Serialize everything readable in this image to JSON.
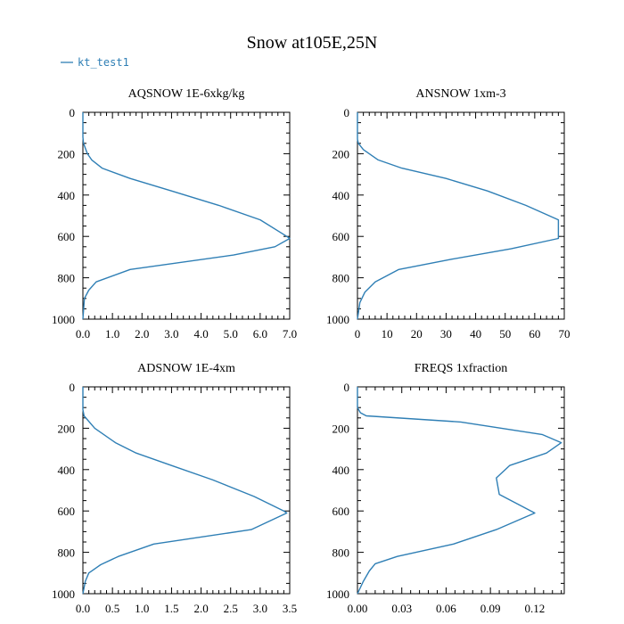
{
  "title": "Snow at105E,25N",
  "legend": {
    "label": "kt_test1",
    "color": "#2f7fb5",
    "placement": "top-left"
  },
  "chart_data": [
    {
      "type": "line",
      "title": "AQSNOW  1E-6xkg/kg",
      "xlim": [
        0,
        7
      ],
      "ylim": [
        1000,
        0
      ],
      "xticks": [
        0,
        1,
        2,
        3,
        4,
        5,
        6,
        7
      ],
      "xtick_labels": [
        "0.0",
        "1.0",
        "2.0",
        "3.0",
        "4.0",
        "5.0",
        "6.0",
        "7.0"
      ],
      "yticks": [
        0,
        200,
        400,
        600,
        800,
        1000
      ],
      "ytick_labels": [
        "0",
        "200",
        "400",
        "600",
        "800",
        "1000"
      ],
      "series": [
        {
          "x": [
            0,
            0,
            0.02,
            0.15,
            0.3,
            0.65,
            1.6,
            3.0,
            4.6,
            6.0,
            6.9,
            7.0,
            6.5,
            5.1,
            1.6,
            0.45,
            0.2,
            0.05,
            0
          ],
          "y": [
            0,
            120,
            150,
            200,
            230,
            270,
            320,
            380,
            450,
            520,
            600,
            610,
            650,
            690,
            760,
            820,
            860,
            900,
            1000
          ]
        }
      ]
    },
    {
      "type": "line",
      "title": "ANSNOW  1xm-3",
      "xlim": [
        0,
        70
      ],
      "ylim": [
        1000,
        0
      ],
      "xticks": [
        0,
        10,
        20,
        30,
        40,
        50,
        60,
        70
      ],
      "xtick_labels": [
        "0",
        "10",
        "20",
        "30",
        "40",
        "50",
        "60",
        "70"
      ],
      "yticks": [
        0,
        200,
        400,
        600,
        800,
        1000
      ],
      "ytick_labels": [
        "0",
        "200",
        "400",
        "600",
        "800",
        "1000"
      ],
      "series": [
        {
          "x": [
            0,
            0,
            0.3,
            2,
            7,
            15,
            30,
            44,
            57,
            68,
            68,
            52,
            32,
            14,
            6,
            2.5,
            0.8,
            0
          ],
          "y": [
            0,
            130,
            150,
            180,
            230,
            270,
            320,
            380,
            450,
            520,
            610,
            660,
            710,
            760,
            820,
            870,
            920,
            1000
          ]
        }
      ]
    },
    {
      "type": "line",
      "title": "ADSNOW  1E-4xm",
      "xlim": [
        0,
        3.5
      ],
      "ylim": [
        1000,
        0
      ],
      "xticks": [
        0,
        0.5,
        1,
        1.5,
        2,
        2.5,
        3,
        3.5
      ],
      "xtick_labels": [
        "0.0",
        "0.5",
        "1.0",
        "1.5",
        "2.0",
        "2.5",
        "3.0",
        "3.5"
      ],
      "yticks": [
        0,
        200,
        400,
        600,
        800,
        1000
      ],
      "ytick_labels": [
        "0",
        "200",
        "400",
        "600",
        "800",
        "1000"
      ],
      "series": [
        {
          "x": [
            0,
            0,
            0.02,
            0.2,
            0.55,
            0.9,
            1.5,
            2.2,
            2.9,
            3.4,
            3.45,
            2.85,
            1.2,
            0.6,
            0.3,
            0.1,
            0.04,
            0
          ],
          "y": [
            0,
            110,
            140,
            200,
            270,
            320,
            380,
            450,
            530,
            600,
            610,
            690,
            760,
            820,
            860,
            900,
            940,
            1000
          ]
        }
      ]
    },
    {
      "type": "line",
      "title": "FREQS  1xfraction",
      "xlim": [
        0,
        0.14
      ],
      "ylim": [
        1000,
        0
      ],
      "xticks": [
        0,
        0.03,
        0.06,
        0.09,
        0.12
      ],
      "xtick_labels": [
        "0.00",
        "0.03",
        "0.06",
        "0.09",
        "0.12"
      ],
      "yticks": [
        0,
        200,
        400,
        600,
        800,
        1000
      ],
      "ytick_labels": [
        "0",
        "200",
        "400",
        "600",
        "800",
        "1000"
      ],
      "series": [
        {
          "x": [
            0,
            0,
            0.002,
            0.006,
            0.07,
            0.125,
            0.138,
            0.128,
            0.103,
            0.094,
            0.096,
            0.12,
            0.094,
            0.065,
            0.027,
            0.012,
            0.008,
            0.004,
            0
          ],
          "y": [
            0,
            100,
            125,
            140,
            170,
            230,
            270,
            320,
            380,
            440,
            520,
            610,
            690,
            760,
            820,
            855,
            890,
            940,
            1000
          ]
        }
      ]
    }
  ]
}
